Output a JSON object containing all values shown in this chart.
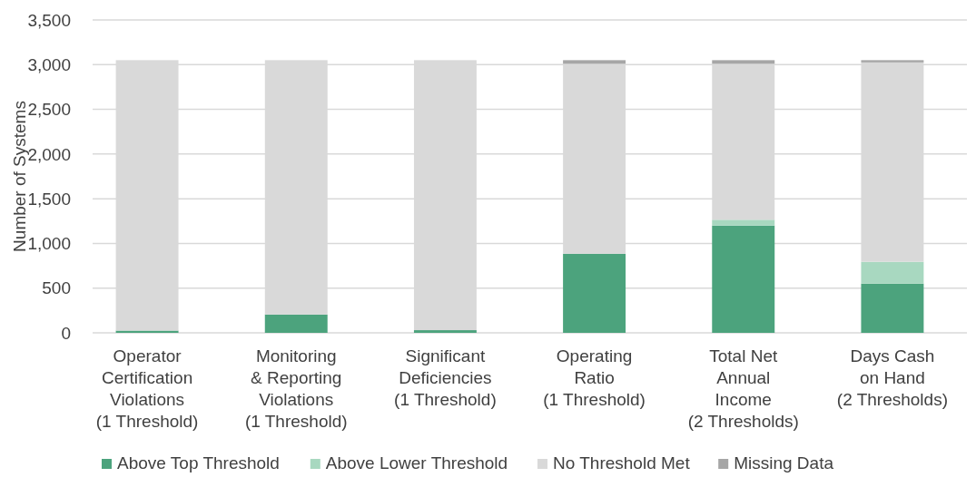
{
  "chart_data": {
    "type": "bar",
    "stacked": true,
    "ylabel": "Number of Systems",
    "categories": [
      "Operator\nCertification\nViolations\n(1 Threshold)",
      "Monitoring\n& Reporting\nViolations\n(1 Threshold)",
      "Significant\nDeficiencies\n(1 Threshold)",
      "Operating\nRatio\n(1 Threshold)",
      "Total Net\nAnnual\nIncome\n(2 Thresholds)",
      "Days Cash\non Hand\n(2 Thresholds)"
    ],
    "series": [
      {
        "name": "Above Top Threshold",
        "color": "#4ca37d",
        "values": [
          25,
          205,
          30,
          885,
          1200,
          550
        ]
      },
      {
        "name": "Above Lower Threshold",
        "color": "#a8d8c0",
        "values": [
          0,
          0,
          0,
          0,
          65,
          245
        ]
      },
      {
        "name": "No Threshold Met",
        "color": "#d9d9d9",
        "values": [
          3025,
          2845,
          3020,
          2125,
          1745,
          2230
        ]
      },
      {
        "name": "Missing Data",
        "color": "#a6a6a6",
        "values": [
          0,
          0,
          0,
          40,
          40,
          25
        ]
      }
    ],
    "ylim": [
      0,
      3500
    ],
    "yticks": [
      0,
      500,
      {
        "value": 1000,
        "label": "1,000"
      },
      {
        "value": 1500,
        "label": "1,500"
      },
      {
        "value": 2000,
        "label": "2,000"
      },
      {
        "value": 2500,
        "label": "2,500"
      },
      {
        "value": 3000,
        "label": "3,000"
      },
      {
        "value": 3500,
        "label": "3,500"
      }
    ],
    "grid": "y",
    "legend": "bottom"
  }
}
